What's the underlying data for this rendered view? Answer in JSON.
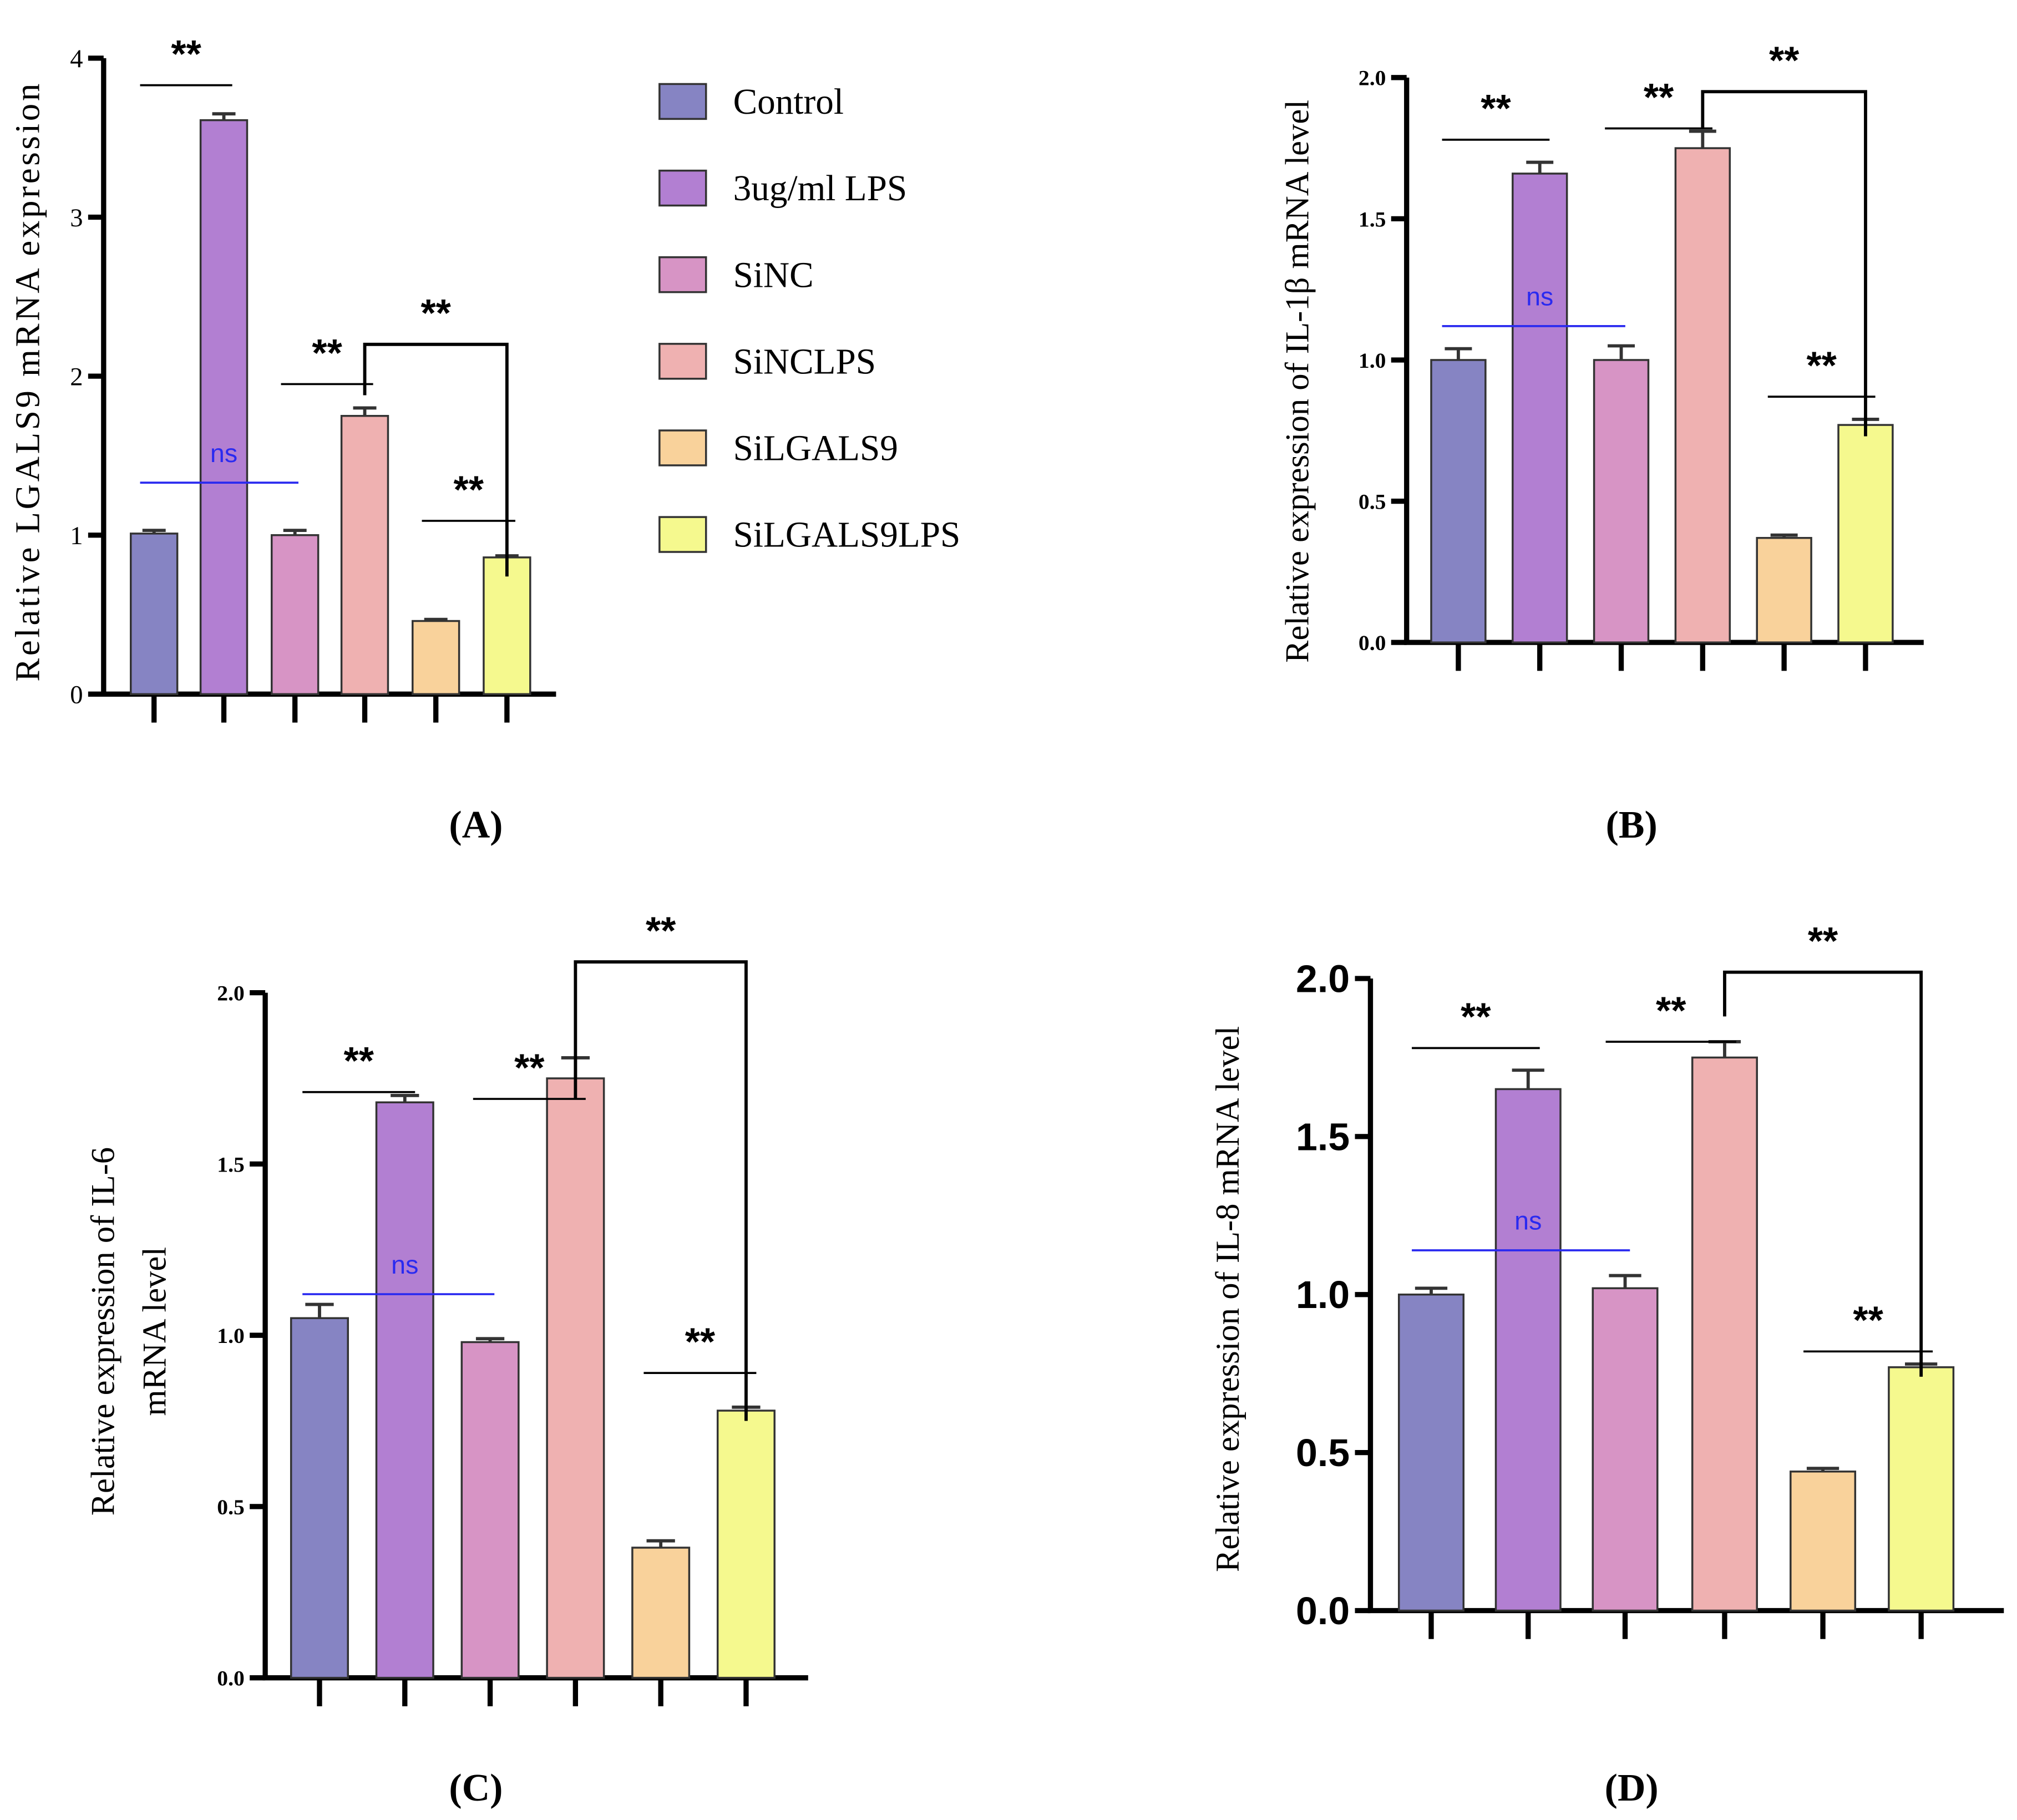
{
  "legend": [
    {
      "label": "Control",
      "color": "#8684c3"
    },
    {
      "label": "3ug/ml LPS",
      "color": "#b27fd2"
    },
    {
      "label": "SiNC",
      "color": "#d794c5"
    },
    {
      "label": "SiNCLPS",
      "color": "#efb1b1"
    },
    {
      "label": "SiLGALS9",
      "color": "#f9d29b"
    },
    {
      "label": "SiLGALS9LPS",
      "color": "#f5f98e"
    }
  ],
  "chart_data": [
    {
      "type": "bar",
      "panel": "(A)",
      "ylabel": "Relative LGALS9 mRNA expression",
      "ylim": [
        0,
        4
      ],
      "yticks": [
        "0",
        "1",
        "2",
        "3",
        "4"
      ],
      "tickstep": 1,
      "values": [
        1.01,
        3.61,
        1.0,
        1.75,
        0.46,
        0.86
      ],
      "errors": [
        0.02,
        0.04,
        0.03,
        0.05,
        0.01,
        0.01
      ],
      "annotations": [
        {
          "kind": "line",
          "from": 0,
          "to": 1,
          "y": 3.83,
          "text": "**"
        },
        {
          "kind": "line",
          "from": 2,
          "to": 3,
          "y": 1.95,
          "text": "**"
        },
        {
          "kind": "bracket",
          "from": 3,
          "to": 5,
          "y": 2.2,
          "left": 1.88,
          "right": 0.74,
          "text": "**"
        },
        {
          "kind": "line",
          "from": 4,
          "to": 5,
          "y": 1.09,
          "text": "**"
        },
        {
          "kind": "ns",
          "from": 0,
          "to": 2,
          "y": 1.33,
          "text": "ns"
        }
      ]
    },
    {
      "type": "bar",
      "panel": "(B)",
      "ylabel": "Relative expression of IL-1β mRNA level",
      "ylim": [
        0,
        2
      ],
      "yticks": [
        "0.0",
        "0.5",
        "1.0",
        "1.5",
        "2.0"
      ],
      "tickstep": 0.5,
      "values": [
        1.0,
        1.66,
        1.0,
        1.75,
        0.37,
        0.77
      ],
      "errors": [
        0.04,
        0.04,
        0.05,
        0.06,
        0.01,
        0.02
      ],
      "annotations": [
        {
          "kind": "line",
          "from": 0,
          "to": 1,
          "y": 1.78,
          "text": "**"
        },
        {
          "kind": "line",
          "from": 2,
          "to": 3,
          "y": 1.82,
          "text": "**"
        },
        {
          "kind": "bracket",
          "from": 3,
          "to": 5,
          "y": 1.95,
          "left": 1.82,
          "right": 0.73,
          "text": "**"
        },
        {
          "kind": "line",
          "from": 4,
          "to": 5,
          "y": 0.87,
          "text": "**"
        },
        {
          "kind": "ns",
          "from": 0,
          "to": 2,
          "y": 1.12,
          "text": "ns"
        }
      ]
    },
    {
      "type": "bar",
      "panel": "(C)",
      "ylabel": [
        "Relative expression of IL-6",
        "mRNA level"
      ],
      "ylim": [
        0,
        2
      ],
      "yticks": [
        "0.0",
        "0.5",
        "1.0",
        "1.5",
        "2.0"
      ],
      "tickstep": 0.5,
      "values": [
        1.05,
        1.68,
        0.98,
        1.75,
        0.38,
        0.78
      ],
      "errors": [
        0.04,
        0.02,
        0.01,
        0.06,
        0.02,
        0.01
      ],
      "annotations": [
        {
          "kind": "line",
          "from": 0,
          "to": 1,
          "y": 1.71,
          "text": "**"
        },
        {
          "kind": "line",
          "from": 2,
          "to": 3,
          "y": 1.69,
          "text": "**"
        },
        {
          "kind": "bracket",
          "from": 3,
          "to": 5,
          "y": 2.09,
          "left": 1.69,
          "right": 0.75,
          "text": "**"
        },
        {
          "kind": "line",
          "from": 4,
          "to": 5,
          "y": 0.89,
          "text": "**"
        },
        {
          "kind": "ns",
          "from": 0,
          "to": 2,
          "y": 1.12,
          "text": "ns"
        }
      ]
    },
    {
      "type": "bar",
      "panel": "(D)",
      "ylabel": "Relative expression of IL-8 mRNA level",
      "ylim": [
        0,
        2
      ],
      "yticks": [
        "0.0",
        "0.5",
        "1.0",
        "1.5",
        "2.0"
      ],
      "tickstep": 0.5,
      "values": [
        1.0,
        1.65,
        1.02,
        1.75,
        0.44,
        0.77
      ],
      "errors": [
        0.02,
        0.06,
        0.04,
        0.05,
        0.01,
        0.01
      ],
      "annotations": [
        {
          "kind": "line",
          "from": 0,
          "to": 1,
          "y": 1.78,
          "text": "**"
        },
        {
          "kind": "line",
          "from": 2,
          "to": 3,
          "y": 1.8,
          "text": "**"
        },
        {
          "kind": "bracket",
          "from": 3,
          "to": 5,
          "y": 2.02,
          "left": 1.88,
          "right": 0.74,
          "text": "**"
        },
        {
          "kind": "line",
          "from": 4,
          "to": 5,
          "y": 0.82,
          "text": "**"
        },
        {
          "kind": "ns",
          "from": 0,
          "to": 2,
          "y": 1.14,
          "text": "ns"
        }
      ]
    }
  ]
}
